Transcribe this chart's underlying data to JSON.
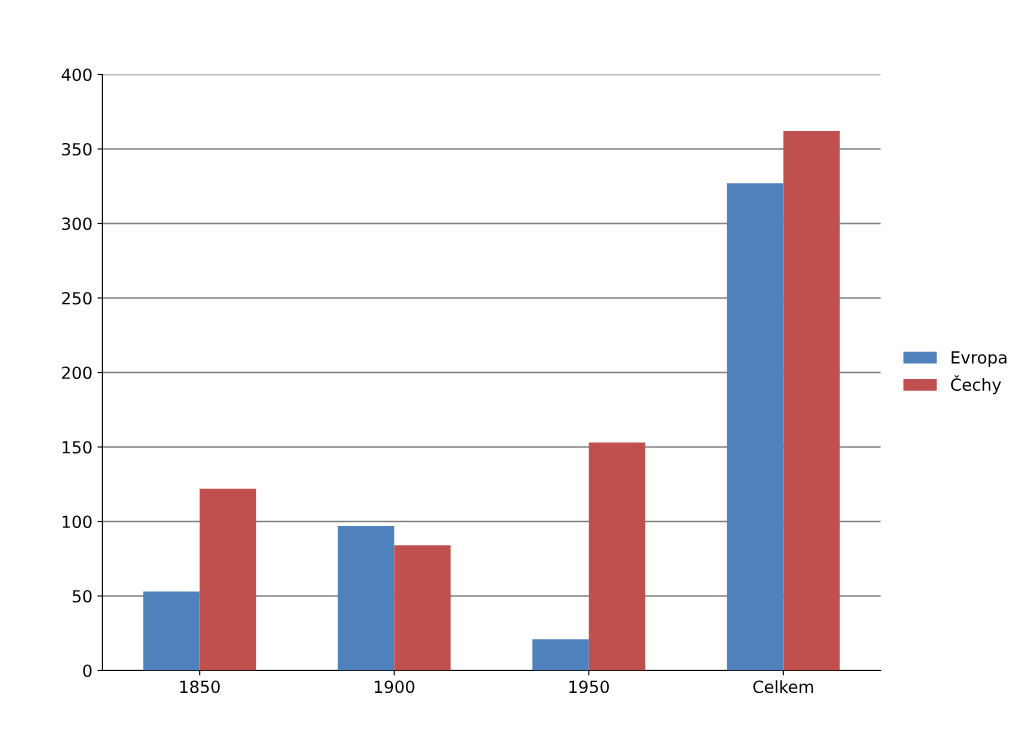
{
  "chart_data": {
    "type": "bar",
    "categories": [
      "1850",
      "1900",
      "1950",
      "Celkem"
    ],
    "series": [
      {
        "name": "Evropa",
        "color": "#4f81bd",
        "values": [
          53,
          97,
          21,
          327
        ]
      },
      {
        "name": "Čechy",
        "color": "#c0504d",
        "values": [
          122,
          84,
          153,
          362
        ]
      }
    ],
    "ylim": [
      0,
      400
    ],
    "yticks": [
      0,
      50,
      100,
      150,
      200,
      250,
      300,
      350,
      400
    ],
    "grid": "y",
    "legend": "right"
  }
}
